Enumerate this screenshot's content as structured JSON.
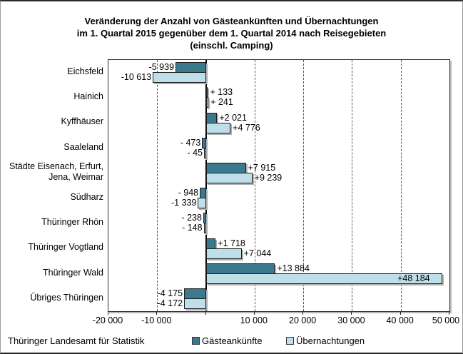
{
  "title": {
    "lines": [
      "Veränderung der Anzahl von Gästeankünften und Übernachtungen",
      "im 1. Quartal 2015 gegenüber dem 1. Quartal 2014 nach Reisegebieten",
      "(einschl. Camping)"
    ]
  },
  "source": "Thüringer Landesamt für Statistik",
  "colors": {
    "arrivals_fill": "#3b7a8e",
    "overnights_fill": "#bedfea",
    "bar_border": "#1c1c1c",
    "shadow": "#b0b0b0"
  },
  "chart_data": {
    "type": "bar",
    "orientation": "horizontal",
    "title": "Veränderung der Anzahl von Gästeankünften und Übernachtungen im 1. Quartal 2015 gegenüber dem 1. Quartal 2014 nach Reisegebieten (einschl. Camping)",
    "categories": [
      "Eichsfeld",
      "Hainich",
      "Kyffhäuser",
      "Saaleland",
      "Städte Eisenach, Erfurt, Jena, Weimar",
      "Südharz",
      "Thüringer Rhön",
      "Thüringer Vogtland",
      "Thüringer Wald",
      "Übriges Thüringen"
    ],
    "series": [
      {
        "name": "Gästeankünfte",
        "values": [
          -5939,
          133,
          2021,
          -473,
          7915,
          -948,
          -238,
          1718,
          13884,
          -4175
        ],
        "labels": [
          "-5 939",
          "+ 133",
          "+2 021",
          "- 473",
          "+7 915",
          "- 948",
          "- 238",
          "+1 718",
          "+13 884",
          "-4 175"
        ]
      },
      {
        "name": "Übernachtungen",
        "values": [
          -10613,
          241,
          4776,
          -45,
          9239,
          -1339,
          -148,
          7044,
          48184,
          -4172
        ],
        "labels": [
          "-10 613",
          "+ 241",
          "+4 776",
          "- 45",
          "+9 239",
          "-1 339",
          "- 148",
          "+7 044",
          "+48 184",
          "-4 172"
        ]
      }
    ],
    "xlim": [
      -20000,
      50000
    ],
    "x_ticks": [
      {
        "value": -20000,
        "label": "-20 000"
      },
      {
        "value": -10000,
        "label": "-10 000"
      },
      {
        "value": 0,
        "label": ""
      },
      {
        "value": 10000,
        "label": "10 000"
      },
      {
        "value": 20000,
        "label": "20 000"
      },
      {
        "value": 30000,
        "label": "30 000"
      },
      {
        "value": 40000,
        "label": "40 000"
      },
      {
        "value": 50000,
        "label": "50 000"
      }
    ],
    "gridline_values": [
      -10000,
      10000,
      20000,
      30000,
      40000
    ],
    "grid": "dashed-vertical",
    "legend_position": "bottom"
  }
}
